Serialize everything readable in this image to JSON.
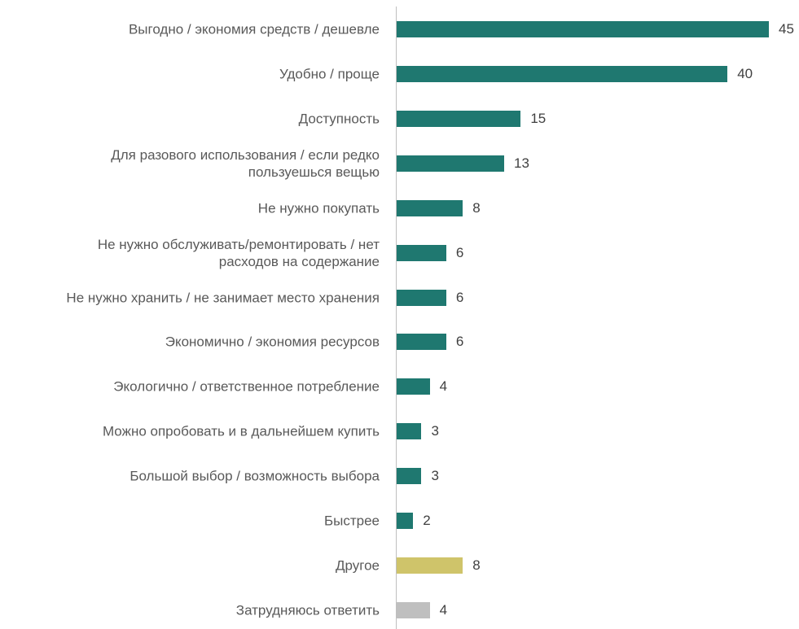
{
  "chart_data": {
    "type": "bar",
    "orientation": "horizontal",
    "categories": [
      "Выгодно / экономия средств / дешевле",
      "Удобно / проще",
      "Доступность",
      "Для разового использования / если редко\nпользуешься вещью",
      "Не нужно покупать",
      "Не нужно обслуживать/ремонтировать / нет\nрасходов на содержание",
      "Не нужно хранить / не занимает место хранения",
      "Экономично / экономия ресурсов",
      "Экологично / ответственное  потребление",
      "Можно опробовать и в дальнейшем купить",
      "Большой выбор / возможность выбора",
      "Быстрее",
      "Другое",
      "Затрудняюсь ответить"
    ],
    "values": [
      45,
      40,
      15,
      13,
      8,
      6,
      6,
      6,
      4,
      3,
      3,
      2,
      8,
      4
    ],
    "colors": [
      "#1f7870",
      "#1f7870",
      "#1f7870",
      "#1f7870",
      "#1f7870",
      "#1f7870",
      "#1f7870",
      "#1f7870",
      "#1f7870",
      "#1f7870",
      "#1f7870",
      "#1f7870",
      "#cfc46a",
      "#bfbfbf"
    ],
    "xlim": [
      0,
      45
    ]
  }
}
